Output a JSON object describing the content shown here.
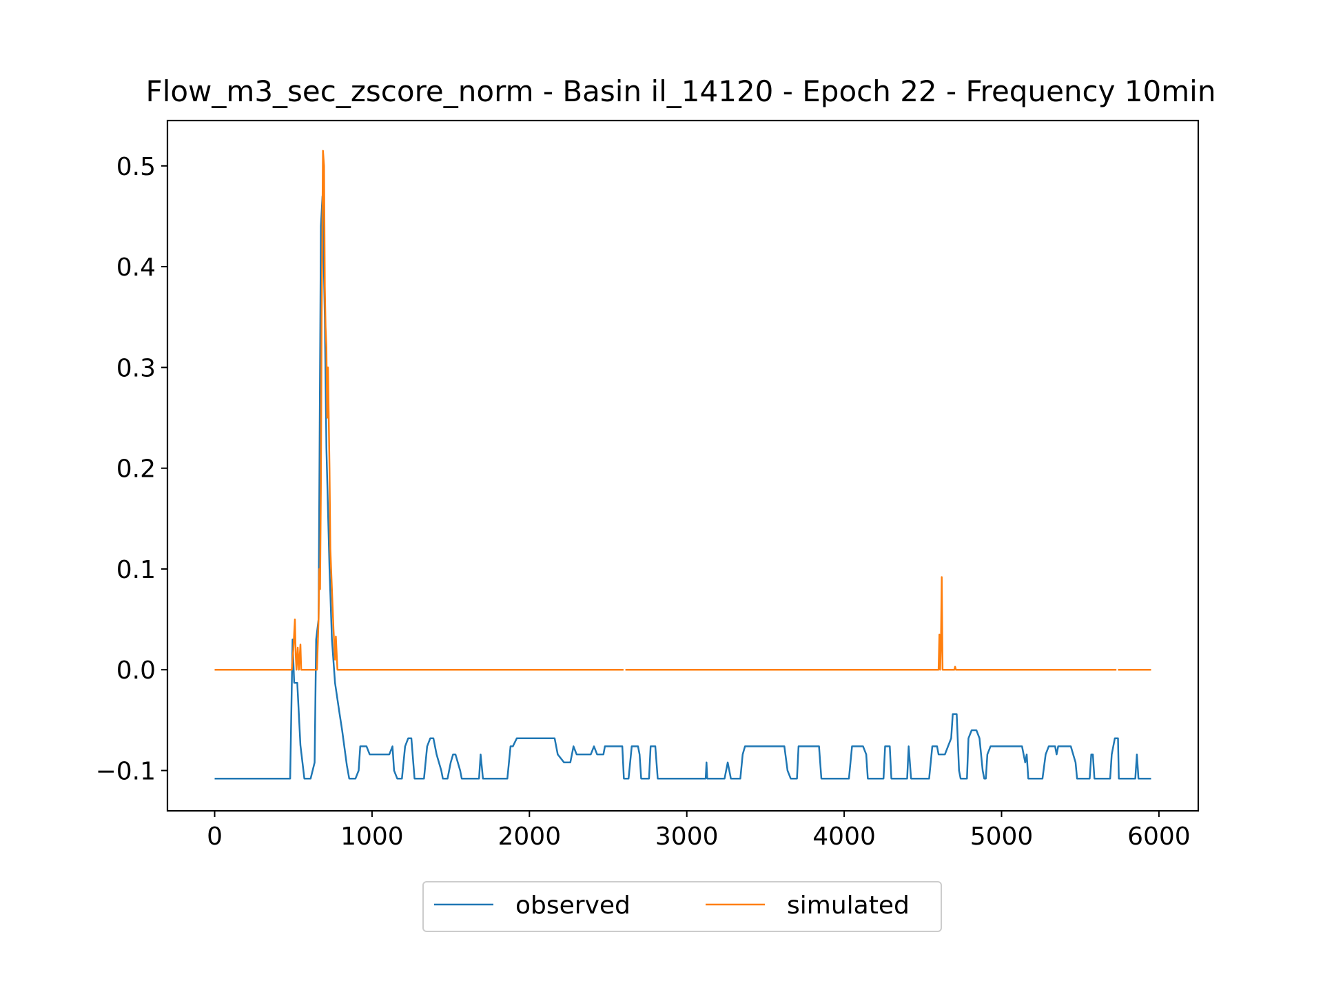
{
  "chart_data": {
    "type": "line",
    "title": "Flow_m3_sec_zscore_norm - Basin il_14120 - Epoch 22 - Frequency 10min",
    "xlabel": "",
    "ylabel": "",
    "xlim": [
      -300,
      6250
    ],
    "ylim": [
      -0.14,
      0.545
    ],
    "xticks": [
      0,
      1000,
      2000,
      3000,
      4000,
      5000,
      6000
    ],
    "yticks": [
      -0.1,
      0.0,
      0.1,
      0.2,
      0.3,
      0.4,
      0.5
    ],
    "xtick_labels": [
      "0",
      "1000",
      "2000",
      "3000",
      "4000",
      "5000",
      "6000"
    ],
    "ytick_labels": [
      "−0.1",
      "0.0",
      "0.1",
      "0.2",
      "0.3",
      "0.4",
      "0.5"
    ],
    "grid": false,
    "legend": {
      "placement": "bottom-center",
      "columns": 2
    },
    "series": [
      {
        "name": "observed",
        "color": "#1f77b4",
        "points": [
          [
            0,
            -0.108
          ],
          [
            480,
            -0.108
          ],
          [
            495,
            0.03
          ],
          [
            505,
            -0.013
          ],
          [
            525,
            -0.013
          ],
          [
            545,
            -0.075
          ],
          [
            570,
            -0.108
          ],
          [
            610,
            -0.108
          ],
          [
            635,
            -0.092
          ],
          [
            645,
            0.03
          ],
          [
            660,
            0.05
          ],
          [
            675,
            0.44
          ],
          [
            685,
            0.47
          ],
          [
            700,
            0.35
          ],
          [
            710,
            0.22
          ],
          [
            730,
            0.1
          ],
          [
            745,
            0.03
          ],
          [
            765,
            -0.013
          ],
          [
            790,
            -0.04
          ],
          [
            810,
            -0.06
          ],
          [
            840,
            -0.095
          ],
          [
            855,
            -0.108
          ],
          [
            895,
            -0.108
          ],
          [
            915,
            -0.1
          ],
          [
            925,
            -0.076
          ],
          [
            965,
            -0.076
          ],
          [
            985,
            -0.084
          ],
          [
            1110,
            -0.084
          ],
          [
            1130,
            -0.076
          ],
          [
            1140,
            -0.1
          ],
          [
            1160,
            -0.108
          ],
          [
            1190,
            -0.108
          ],
          [
            1210,
            -0.076
          ],
          [
            1230,
            -0.068
          ],
          [
            1250,
            -0.068
          ],
          [
            1270,
            -0.108
          ],
          [
            1330,
            -0.108
          ],
          [
            1350,
            -0.076
          ],
          [
            1370,
            -0.068
          ],
          [
            1390,
            -0.068
          ],
          [
            1410,
            -0.084
          ],
          [
            1440,
            -0.1
          ],
          [
            1450,
            -0.108
          ],
          [
            1480,
            -0.108
          ],
          [
            1500,
            -0.092
          ],
          [
            1515,
            -0.084
          ],
          [
            1530,
            -0.084
          ],
          [
            1560,
            -0.1
          ],
          [
            1570,
            -0.108
          ],
          [
            1680,
            -0.108
          ],
          [
            1690,
            -0.084
          ],
          [
            1705,
            -0.108
          ],
          [
            1860,
            -0.108
          ],
          [
            1880,
            -0.076
          ],
          [
            1895,
            -0.076
          ],
          [
            1920,
            -0.068
          ],
          [
            2160,
            -0.068
          ],
          [
            2180,
            -0.084
          ],
          [
            2220,
            -0.092
          ],
          [
            2260,
            -0.092
          ],
          [
            2280,
            -0.076
          ],
          [
            2300,
            -0.084
          ],
          [
            2390,
            -0.084
          ],
          [
            2410,
            -0.076
          ],
          [
            2430,
            -0.084
          ],
          [
            2470,
            -0.084
          ],
          [
            2480,
            -0.076
          ],
          [
            2590,
            -0.076
          ],
          [
            2600,
            -0.108
          ],
          [
            2630,
            -0.108
          ],
          [
            2650,
            -0.076
          ],
          [
            2690,
            -0.076
          ],
          [
            2700,
            -0.084
          ],
          [
            2710,
            -0.108
          ],
          [
            2760,
            -0.108
          ],
          [
            2770,
            -0.076
          ],
          [
            2800,
            -0.076
          ],
          [
            2815,
            -0.108
          ],
          [
            3120,
            -0.108
          ],
          [
            3125,
            -0.092
          ],
          [
            3130,
            -0.108
          ],
          [
            3240,
            -0.108
          ],
          [
            3260,
            -0.092
          ],
          [
            3280,
            -0.108
          ],
          [
            3340,
            -0.108
          ],
          [
            3355,
            -0.084
          ],
          [
            3370,
            -0.076
          ],
          [
            3620,
            -0.076
          ],
          [
            3640,
            -0.1
          ],
          [
            3660,
            -0.108
          ],
          [
            3700,
            -0.108
          ],
          [
            3710,
            -0.076
          ],
          [
            3840,
            -0.076
          ],
          [
            3855,
            -0.108
          ],
          [
            4030,
            -0.108
          ],
          [
            4050,
            -0.076
          ],
          [
            4120,
            -0.076
          ],
          [
            4140,
            -0.084
          ],
          [
            4150,
            -0.108
          ],
          [
            4250,
            -0.108
          ],
          [
            4260,
            -0.076
          ],
          [
            4290,
            -0.076
          ],
          [
            4300,
            -0.108
          ],
          [
            4400,
            -0.108
          ],
          [
            4410,
            -0.076
          ],
          [
            4425,
            -0.108
          ],
          [
            4540,
            -0.108
          ],
          [
            4560,
            -0.076
          ],
          [
            4590,
            -0.076
          ],
          [
            4600,
            -0.084
          ],
          [
            4640,
            -0.084
          ],
          [
            4660,
            -0.076
          ],
          [
            4680,
            -0.068
          ],
          [
            4690,
            -0.044
          ],
          [
            4715,
            -0.044
          ],
          [
            4730,
            -0.1
          ],
          [
            4740,
            -0.108
          ],
          [
            4780,
            -0.108
          ],
          [
            4790,
            -0.068
          ],
          [
            4810,
            -0.06
          ],
          [
            4840,
            -0.06
          ],
          [
            4860,
            -0.068
          ],
          [
            4880,
            -0.1
          ],
          [
            4890,
            -0.108
          ],
          [
            4900,
            -0.108
          ],
          [
            4910,
            -0.084
          ],
          [
            4930,
            -0.076
          ],
          [
            5130,
            -0.076
          ],
          [
            5150,
            -0.092
          ],
          [
            5160,
            -0.084
          ],
          [
            5170,
            -0.108
          ],
          [
            5260,
            -0.108
          ],
          [
            5280,
            -0.084
          ],
          [
            5300,
            -0.076
          ],
          [
            5340,
            -0.076
          ],
          [
            5350,
            -0.084
          ],
          [
            5360,
            -0.076
          ],
          [
            5440,
            -0.076
          ],
          [
            5470,
            -0.092
          ],
          [
            5480,
            -0.108
          ],
          [
            5560,
            -0.108
          ],
          [
            5570,
            -0.084
          ],
          [
            5580,
            -0.084
          ],
          [
            5590,
            -0.108
          ],
          [
            5690,
            -0.108
          ],
          [
            5700,
            -0.084
          ],
          [
            5720,
            -0.068
          ],
          [
            5740,
            -0.068
          ],
          [
            5745,
            -0.108
          ],
          [
            5850,
            -0.108
          ],
          [
            5860,
            -0.084
          ],
          [
            5870,
            -0.108
          ],
          [
            5950,
            -0.108
          ]
        ]
      },
      {
        "name": "simulated",
        "color": "#ff7f0e",
        "points": [
          [
            0,
            0.0
          ],
          [
            490,
            0.0
          ],
          [
            500,
            0.02
          ],
          [
            510,
            0.05
          ],
          [
            515,
            0.015
          ],
          [
            520,
            0.0
          ],
          [
            528,
            0.022
          ],
          [
            535,
            0.0
          ],
          [
            545,
            0.025
          ],
          [
            550,
            0.0
          ],
          [
            650,
            0.0
          ],
          [
            660,
            0.05
          ],
          [
            665,
            0.1
          ],
          [
            670,
            0.08
          ],
          [
            675,
            0.18
          ],
          [
            680,
            0.35
          ],
          [
            688,
            0.515
          ],
          [
            695,
            0.5
          ],
          [
            700,
            0.38
          ],
          [
            705,
            0.34
          ],
          [
            710,
            0.32
          ],
          [
            715,
            0.25
          ],
          [
            720,
            0.3
          ],
          [
            730,
            0.2
          ],
          [
            735,
            0.12
          ],
          [
            745,
            0.08
          ],
          [
            755,
            0.04
          ],
          [
            765,
            0.01
          ],
          [
            770,
            0.033
          ],
          [
            780,
            0.0
          ],
          [
            2598,
            0.0
          ],
          [
            null,
            null
          ],
          [
            2610,
            0.0
          ],
          [
            4600,
            0.0
          ],
          [
            4605,
            0.035
          ],
          [
            4610,
            0.0
          ],
          [
            4615,
            0.03
          ],
          [
            4620,
            0.092
          ],
          [
            4625,
            0.0
          ],
          [
            4700,
            0.0
          ],
          [
            4705,
            0.003
          ],
          [
            4710,
            0.0
          ],
          [
            5730,
            0.0
          ],
          [
            null,
            null
          ],
          [
            5740,
            0.0
          ],
          [
            5950,
            0.0
          ]
        ]
      }
    ]
  }
}
